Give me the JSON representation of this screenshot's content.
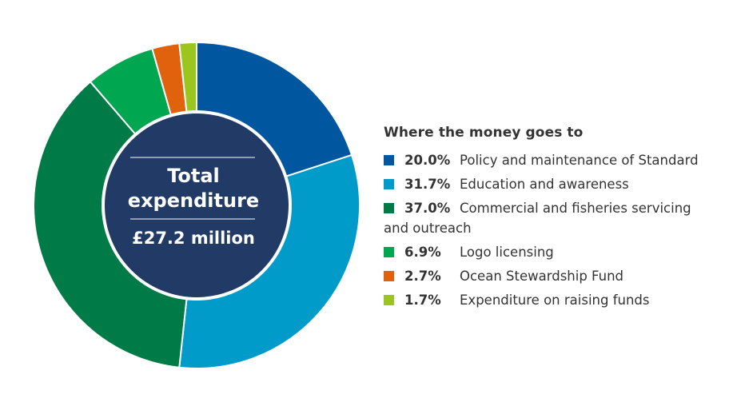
{
  "chart_data": {
    "type": "pie",
    "style": "donut",
    "center": {
      "line1": "Total",
      "line2": "expenditure",
      "line3": "£27.2 million"
    },
    "legend_title": "Where the money goes to",
    "legend_placement": "right",
    "series": [
      {
        "pct_label": "20.0%",
        "value": 20.0,
        "label": "Policy and maintenance of Standard",
        "color": "#0057a0"
      },
      {
        "pct_label": "31.7%",
        "value": 31.7,
        "label": "Education and awareness",
        "color": "#009bc8"
      },
      {
        "pct_label": "37.0%",
        "value": 37.0,
        "label": "Commercial and fisheries servicing and outreach",
        "color": "#007a47"
      },
      {
        "pct_label": "6.9%",
        "value": 6.9,
        "label": "Logo licensing",
        "color": "#00a650"
      },
      {
        "pct_label": "2.7%",
        "value": 2.7,
        "label": "Ocean Stewardship Fund",
        "color": "#e0620d"
      },
      {
        "pct_label": "1.7%",
        "value": 1.7,
        "label": "Expenditure on raising funds",
        "color": "#9bc61e"
      }
    ],
    "center_color": "#213a66"
  }
}
